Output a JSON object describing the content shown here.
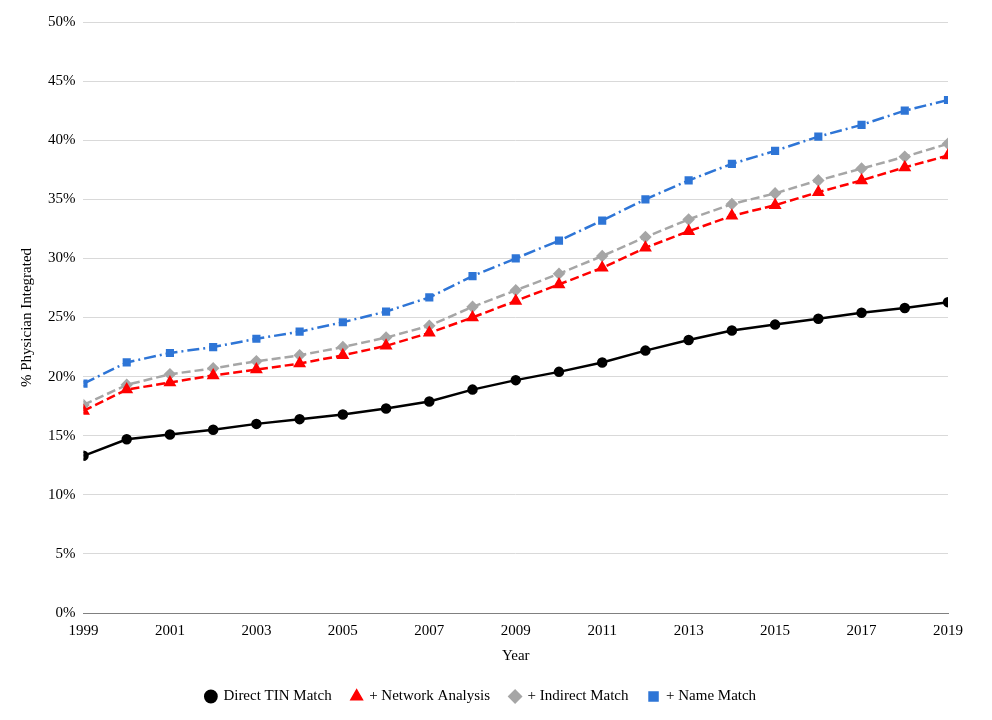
{
  "chart_data": {
    "type": "line",
    "x_label": "Year",
    "y_label": "% Physician Integrated",
    "x": [
      1999,
      2000,
      2001,
      2002,
      2003,
      2004,
      2005,
      2006,
      2007,
      2008,
      2009,
      2010,
      2011,
      2012,
      2013,
      2014,
      2015,
      2016,
      2017,
      2018,
      2019
    ],
    "xlim": [
      1999,
      2019
    ],
    "xticks": [
      1999,
      2001,
      2003,
      2005,
      2007,
      2009,
      2011,
      2013,
      2015,
      2017,
      2019
    ],
    "ylim": [
      0,
      50
    ],
    "yticks": [
      {
        "value": 0,
        "label": "0%"
      },
      {
        "value": 5,
        "label": "5%"
      },
      {
        "value": 10,
        "label": "10%"
      },
      {
        "value": 15,
        "label": "15%"
      },
      {
        "value": 20,
        "label": "20%"
      },
      {
        "value": 25,
        "label": "25%"
      },
      {
        "value": 30,
        "label": "30%"
      },
      {
        "value": 35,
        "label": "35%"
      },
      {
        "value": 40,
        "label": "40%"
      },
      {
        "value": 45,
        "label": "45%"
      },
      {
        "value": 50,
        "label": "50%"
      }
    ],
    "grid": "y",
    "legend": "bottom",
    "series": [
      {
        "name": "Direct TIN Match",
        "color": "#000000",
        "marker": "circle",
        "line_style": "solid",
        "values": [
          13.3,
          14.7,
          15.1,
          15.5,
          16.0,
          16.4,
          16.8,
          17.3,
          17.9,
          18.9,
          19.7,
          20.4,
          21.2,
          22.2,
          23.1,
          23.9,
          24.4,
          24.9,
          25.4,
          25.8,
          26.3
        ]
      },
      {
        "name": "+ Network Analysis",
        "color": "#ff0000",
        "marker": "triangle",
        "line_style": "dashed",
        "values": [
          17.1,
          18.9,
          19.5,
          20.1,
          20.6,
          21.1,
          21.8,
          22.6,
          23.7,
          25.0,
          26.4,
          27.8,
          29.2,
          30.9,
          32.3,
          33.6,
          34.5,
          35.6,
          36.6,
          37.7,
          38.7
        ]
      },
      {
        "name": "+ Indirect Match",
        "color": "#a6a6a6",
        "marker": "diamond",
        "line_style": "dashed",
        "values": [
          17.6,
          19.3,
          20.2,
          20.7,
          21.3,
          21.8,
          22.5,
          23.3,
          24.3,
          25.9,
          27.3,
          28.7,
          30.2,
          31.8,
          33.3,
          34.6,
          35.5,
          36.6,
          37.6,
          38.6,
          39.7
        ]
      },
      {
        "name": "+ Name Match",
        "color": "#2e75d6",
        "marker": "square",
        "line_style": "dashdot",
        "values": [
          19.4,
          21.2,
          22.0,
          22.5,
          23.2,
          23.8,
          24.6,
          25.5,
          26.7,
          28.5,
          30.0,
          31.5,
          33.2,
          35.0,
          36.6,
          38.0,
          39.1,
          40.3,
          41.3,
          42.5,
          43.4
        ]
      }
    ]
  }
}
